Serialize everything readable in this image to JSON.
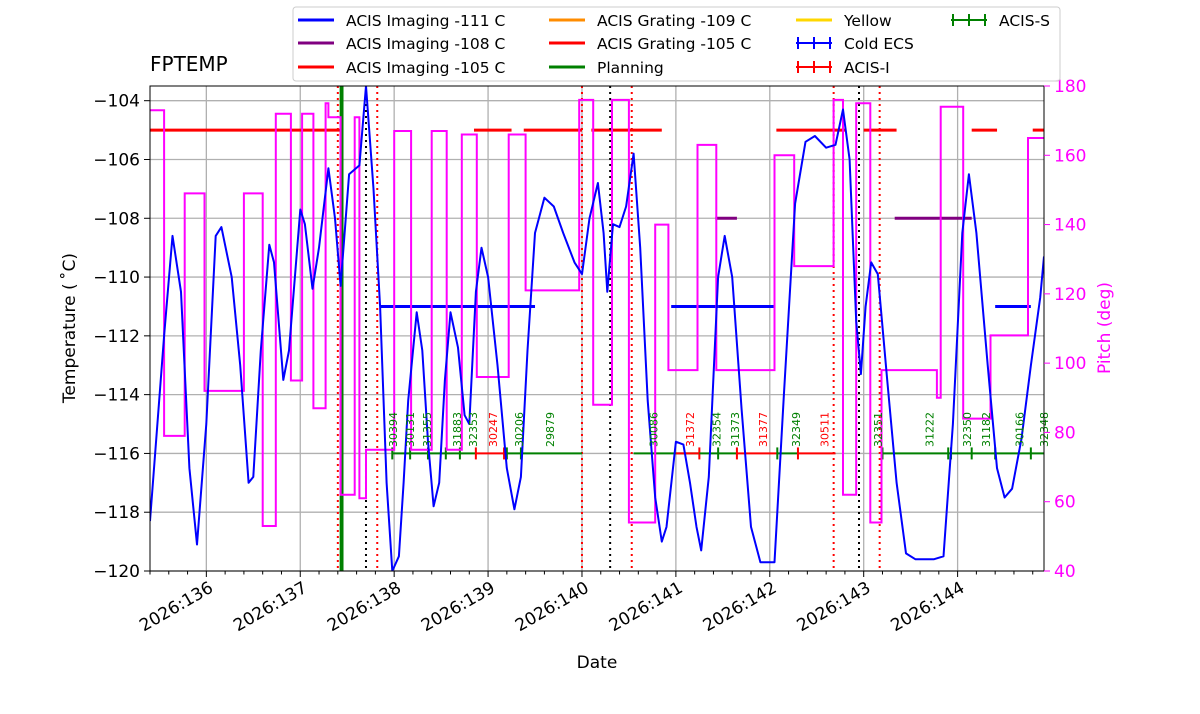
{
  "chart_data": {
    "type": "line",
    "title": "FPTEMP",
    "xlabel": "Date",
    "ylabel": "Temperature ($^\\circ$C)",
    "ylabel_display": "Temperature ( ˚C)",
    "y2label": "Pitch (deg)",
    "xlim": [
      135.4,
      144.92
    ],
    "ylim": [
      -120,
      -103.5
    ],
    "y2lim": [
      40,
      180
    ],
    "xticks": [
      136,
      137,
      138,
      139,
      140,
      141,
      142,
      143,
      144
    ],
    "xtick_labels": [
      "2026:136",
      "2026:137",
      "2026:138",
      "2026:139",
      "2026:140",
      "2026:141",
      "2026:142",
      "2026:143",
      "2026:144"
    ],
    "yticks": [
      -104,
      -106,
      -108,
      -110,
      -112,
      -114,
      -116,
      -118,
      -120
    ],
    "ytick_labels": [
      "−104",
      "−106",
      "−108",
      "−110",
      "−112",
      "−114",
      "−116",
      "−118",
      "−120"
    ],
    "y2ticks": [
      180,
      160,
      140,
      120,
      100,
      80,
      60,
      40
    ],
    "y2tick_labels": [
      "180",
      "160",
      "140",
      "120",
      "100",
      "80",
      "60",
      "40"
    ],
    "grid": true,
    "legend_position": "top",
    "legend": [
      {
        "label": "ACIS Imaging -111 C",
        "color": "#0000ff",
        "kind": "line"
      },
      {
        "label": "ACIS Imaging -108 C",
        "color": "#800080",
        "kind": "line"
      },
      {
        "label": "ACIS Imaging -105 C",
        "color": "#ff0000",
        "kind": "line"
      },
      {
        "label": "ACIS Grating -109 C",
        "color": "#ff8c00",
        "kind": "line"
      },
      {
        "label": "ACIS Grating -105 C",
        "color": "#ff0000",
        "kind": "line"
      },
      {
        "label": "Planning",
        "color": "#008000",
        "kind": "line"
      },
      {
        "label": "Yellow",
        "color": "#ffd700",
        "kind": "line"
      },
      {
        "label": "Cold ECS",
        "color": "#0000ff",
        "kind": "errorbar"
      },
      {
        "label": "ACIS-I",
        "color": "#ff0000",
        "kind": "errorbar"
      },
      {
        "label": "ACIS-S",
        "color": "#008000",
        "kind": "errorbar"
      }
    ],
    "fptemp": {
      "color": "#0000ff",
      "points": [
        [
          135.4,
          -118.3
        ],
        [
          135.55,
          -112.0
        ],
        [
          135.64,
          -108.6
        ],
        [
          135.73,
          -110.5
        ],
        [
          135.82,
          -116.5
        ],
        [
          135.9,
          -119.1
        ],
        [
          136.0,
          -115.0
        ],
        [
          136.1,
          -108.6
        ],
        [
          136.16,
          -108.3
        ],
        [
          136.27,
          -110.0
        ],
        [
          136.36,
          -113.0
        ],
        [
          136.45,
          -117.0
        ],
        [
          136.5,
          -116.8
        ],
        [
          136.58,
          -112.5
        ],
        [
          136.67,
          -108.9
        ],
        [
          136.72,
          -109.5
        ],
        [
          136.82,
          -113.5
        ],
        [
          136.88,
          -112.5
        ],
        [
          137.0,
          -107.7
        ],
        [
          137.05,
          -108.2
        ],
        [
          137.13,
          -110.4
        ],
        [
          137.2,
          -109.0
        ],
        [
          137.3,
          -106.3
        ],
        [
          137.37,
          -108.0
        ],
        [
          137.43,
          -110.3
        ],
        [
          137.52,
          -106.5
        ],
        [
          137.63,
          -106.2
        ],
        [
          137.7,
          -103.5
        ],
        [
          137.78,
          -107.0
        ],
        [
          137.85,
          -111.0
        ],
        [
          137.92,
          -117.0
        ],
        [
          137.98,
          -120.0
        ],
        [
          138.05,
          -119.5
        ],
        [
          138.1,
          -117.0
        ],
        [
          138.15,
          -114.2
        ],
        [
          138.24,
          -111.2
        ],
        [
          138.3,
          -112.5
        ],
        [
          138.36,
          -115.6
        ],
        [
          138.42,
          -117.8
        ],
        [
          138.48,
          -117.0
        ],
        [
          138.54,
          -113.5
        ],
        [
          138.6,
          -111.2
        ],
        [
          138.68,
          -112.4
        ],
        [
          138.75,
          -114.7
        ],
        [
          138.8,
          -115.0
        ],
        [
          138.87,
          -110.5
        ],
        [
          138.93,
          -109.0
        ],
        [
          139.0,
          -110.0
        ],
        [
          139.1,
          -113.0
        ],
        [
          139.2,
          -116.5
        ],
        [
          139.28,
          -117.9
        ],
        [
          139.35,
          -116.8
        ],
        [
          139.42,
          -112.5
        ],
        [
          139.5,
          -108.5
        ],
        [
          139.6,
          -107.3
        ],
        [
          139.7,
          -107.6
        ],
        [
          139.8,
          -108.5
        ],
        [
          139.92,
          -109.5
        ],
        [
          140.0,
          -109.9
        ],
        [
          140.08,
          -108.0
        ],
        [
          140.17,
          -106.8
        ],
        [
          140.23,
          -108.5
        ],
        [
          140.27,
          -110.5
        ],
        [
          140.33,
          -108.2
        ],
        [
          140.4,
          -108.3
        ],
        [
          140.47,
          -107.6
        ],
        [
          140.55,
          -105.8
        ],
        [
          140.62,
          -109.0
        ],
        [
          140.7,
          -114.2
        ],
        [
          140.78,
          -117.5
        ],
        [
          140.85,
          -119.0
        ],
        [
          140.9,
          -118.5
        ],
        [
          141.0,
          -115.6
        ],
        [
          141.08,
          -115.7
        ],
        [
          141.15,
          -117.0
        ],
        [
          141.22,
          -118.5
        ],
        [
          141.27,
          -119.3
        ],
        [
          141.35,
          -116.8
        ],
        [
          141.45,
          -110.0
        ],
        [
          141.52,
          -108.6
        ],
        [
          141.6,
          -110.0
        ],
        [
          141.7,
          -114.5
        ],
        [
          141.8,
          -118.5
        ],
        [
          141.9,
          -119.7
        ],
        [
          142.05,
          -119.7
        ],
        [
          142.15,
          -114.0
        ],
        [
          142.27,
          -107.5
        ],
        [
          142.38,
          -105.4
        ],
        [
          142.48,
          -105.2
        ],
        [
          142.6,
          -105.6
        ],
        [
          142.7,
          -105.5
        ],
        [
          142.78,
          -104.3
        ],
        [
          142.85,
          -106.0
        ],
        [
          142.92,
          -111.5
        ],
        [
          142.97,
          -113.3
        ],
        [
          143.02,
          -111.0
        ],
        [
          143.08,
          -109.5
        ],
        [
          143.15,
          -109.9
        ],
        [
          143.25,
          -113.5
        ],
        [
          143.35,
          -117.0
        ],
        [
          143.45,
          -119.4
        ],
        [
          143.55,
          -119.6
        ],
        [
          143.75,
          -119.6
        ],
        [
          143.85,
          -119.5
        ],
        [
          143.95,
          -115.0
        ],
        [
          144.05,
          -108.5
        ],
        [
          144.12,
          -106.5
        ],
        [
          144.2,
          -108.5
        ],
        [
          144.32,
          -113.0
        ],
        [
          144.42,
          -116.5
        ],
        [
          144.5,
          -117.5
        ],
        [
          144.58,
          -117.2
        ],
        [
          144.68,
          -115.5
        ],
        [
          144.78,
          -113.0
        ],
        [
          144.88,
          -110.7
        ],
        [
          144.92,
          -109.3
        ]
      ]
    },
    "pitch": {
      "color": "#ff00ff",
      "points": [
        [
          135.4,
          173
        ],
        [
          135.55,
          173
        ],
        [
          135.55,
          79
        ],
        [
          135.77,
          79
        ],
        [
          135.77,
          149
        ],
        [
          135.98,
          149
        ],
        [
          135.98,
          92
        ],
        [
          136.4,
          92
        ],
        [
          136.4,
          149
        ],
        [
          136.6,
          149
        ],
        [
          136.6,
          53
        ],
        [
          136.74,
          53
        ],
        [
          136.74,
          172
        ],
        [
          136.9,
          172
        ],
        [
          136.9,
          95
        ],
        [
          137.02,
          95
        ],
        [
          137.02,
          172
        ],
        [
          137.14,
          172
        ],
        [
          137.14,
          87
        ],
        [
          137.27,
          87
        ],
        [
          137.27,
          175
        ],
        [
          137.3,
          175
        ],
        [
          137.3,
          171
        ],
        [
          137.43,
          171
        ],
        [
          137.43,
          62
        ],
        [
          137.58,
          62
        ],
        [
          137.58,
          171
        ],
        [
          137.63,
          171
        ],
        [
          137.63,
          61
        ],
        [
          137.7,
          61
        ],
        [
          137.7,
          75
        ],
        [
          138.0,
          75
        ],
        [
          138.0,
          167
        ],
        [
          138.18,
          167
        ],
        [
          138.18,
          75
        ],
        [
          138.4,
          75
        ],
        [
          138.4,
          167
        ],
        [
          138.56,
          167
        ],
        [
          138.56,
          75
        ],
        [
          138.72,
          75
        ],
        [
          138.72,
          166
        ],
        [
          138.88,
          166
        ],
        [
          138.88,
          96
        ],
        [
          139.22,
          96
        ],
        [
          139.22,
          166
        ],
        [
          139.4,
          166
        ],
        [
          139.4,
          121
        ],
        [
          139.97,
          121
        ],
        [
          139.97,
          176
        ],
        [
          140.12,
          176
        ],
        [
          140.12,
          88
        ],
        [
          140.32,
          88
        ],
        [
          140.32,
          176
        ],
        [
          140.5,
          176
        ],
        [
          140.5,
          54
        ],
        [
          140.78,
          54
        ],
        [
          140.78,
          140
        ],
        [
          140.92,
          140
        ],
        [
          140.92,
          98
        ],
        [
          141.23,
          98
        ],
        [
          141.23,
          163
        ],
        [
          141.43,
          163
        ],
        [
          141.43,
          98
        ],
        [
          142.05,
          98
        ],
        [
          142.05,
          160
        ],
        [
          142.26,
          160
        ],
        [
          142.26,
          128
        ],
        [
          142.68,
          128
        ],
        [
          142.68,
          176
        ],
        [
          142.78,
          176
        ],
        [
          142.78,
          62
        ],
        [
          142.92,
          62
        ],
        [
          142.92,
          175
        ],
        [
          143.02,
          175
        ],
        [
          143.02,
          175
        ],
        [
          143.07,
          175
        ],
        [
          143.07,
          54
        ],
        [
          143.19,
          54
        ],
        [
          143.19,
          98
        ],
        [
          143.78,
          98
        ],
        [
          143.78,
          90
        ],
        [
          143.82,
          90
        ],
        [
          143.82,
          174
        ],
        [
          144.06,
          174
        ],
        [
          144.06,
          84
        ],
        [
          144.35,
          84
        ],
        [
          144.35,
          108
        ],
        [
          144.75,
          108
        ],
        [
          144.75,
          165
        ],
        [
          144.92,
          165
        ]
      ]
    },
    "limit_segments": [
      {
        "color": "#ff0000",
        "y": -105,
        "x": [
          135.4,
          137.45
        ]
      },
      {
        "color": "#ff0000",
        "y": -105,
        "x": [
          138.85,
          139.25
        ]
      },
      {
        "color": "#ff0000",
        "y": -105,
        "x": [
          139.38,
          140.0
        ]
      },
      {
        "color": "#ff0000",
        "y": -105,
        "x": [
          140.1,
          140.85
        ]
      },
      {
        "color": "#ff0000",
        "y": -105,
        "x": [
          142.07,
          142.8
        ]
      },
      {
        "color": "#ff0000",
        "y": -105,
        "x": [
          143.0,
          143.35
        ]
      },
      {
        "color": "#ff0000",
        "y": -105,
        "x": [
          144.15,
          144.42
        ]
      },
      {
        "color": "#ff0000",
        "y": -105,
        "x": [
          144.8,
          144.92
        ]
      },
      {
        "color": "#800080",
        "y": -108,
        "x": [
          141.42,
          141.65
        ]
      },
      {
        "color": "#800080",
        "y": -108,
        "x": [
          143.33,
          144.15
        ]
      },
      {
        "color": "#0000ff",
        "y": -111,
        "x": [
          137.85,
          139.5
        ]
      },
      {
        "color": "#0000ff",
        "y": -111,
        "x": [
          140.95,
          141.45
        ]
      },
      {
        "color": "#0000ff",
        "y": -111,
        "x": [
          141.45,
          142.05
        ]
      },
      {
        "color": "#0000ff",
        "y": -111,
        "x": [
          144.4,
          144.78
        ]
      }
    ],
    "planning_vlines": [
      137.43,
      137.45
    ],
    "red_dotted_vlines": [
      137.4,
      137.82,
      140.0,
      140.53,
      142.68,
      143.17
    ],
    "black_dotted_vlines": [
      137.7,
      140.3,
      142.95
    ],
    "obsids": [
      {
        "id": "30394",
        "x": 137.99,
        "color": "#008000"
      },
      {
        "id": "30131",
        "x": 138.17,
        "color": "#008000"
      },
      {
        "id": "31355",
        "x": 138.35,
        "color": "#008000"
      },
      {
        "id": "31883",
        "x": 138.67,
        "color": "#008000"
      },
      {
        "id": "32353",
        "x": 138.84,
        "color": "#008000"
      },
      {
        "id": "30247",
        "x": 139.05,
        "color": "#ff0000"
      },
      {
        "id": "30206",
        "x": 139.33,
        "color": "#008000"
      },
      {
        "id": "29879",
        "x": 139.66,
        "color": "#008000"
      },
      {
        "id": "30086",
        "x": 140.76,
        "color": "#008000"
      },
      {
        "id": "31372",
        "x": 141.15,
        "color": "#ff0000"
      },
      {
        "id": "32354",
        "x": 141.43,
        "color": "#008000"
      },
      {
        "id": "31373",
        "x": 141.63,
        "color": "#008000"
      },
      {
        "id": "31377",
        "x": 141.93,
        "color": "#ff0000"
      },
      {
        "id": "32349",
        "x": 142.28,
        "color": "#008000"
      },
      {
        "id": "30511",
        "x": 142.58,
        "color": "#ff0000"
      },
      {
        "id": "32351",
        "x": 143.15,
        "color": "#008000"
      },
      {
        "id": "31222",
        "x": 143.7,
        "color": "#008000"
      },
      {
        "id": "32350",
        "x": 144.1,
        "color": "#008000"
      },
      {
        "id": "31182",
        "x": 144.3,
        "color": "#008000"
      },
      {
        "id": "30166",
        "x": 144.66,
        "color": "#008000"
      },
      {
        "id": "32348",
        "x": 144.92,
        "color": "#008000"
      }
    ],
    "obsid_bars": [
      {
        "color": "#008000",
        "x": [
          137.98,
          138.87
        ],
        "ticks": [
          137.98,
          138.17,
          138.36,
          138.55,
          138.7
        ]
      },
      {
        "color": "#ff0000",
        "x": [
          138.87,
          139.2
        ],
        "ticks": [
          138.87,
          139.17
        ]
      },
      {
        "color": "#008000",
        "x": [
          139.2,
          140.0
        ],
        "ticks": [
          139.2,
          139.35
        ]
      },
      {
        "color": "#008000",
        "x": [
          140.55,
          141.25
        ],
        "ticks": []
      },
      {
        "color": "#ff0000",
        "x": [
          141.0,
          141.25
        ],
        "ticks": [
          141.25
        ]
      },
      {
        "color": "#008000",
        "x": [
          141.25,
          141.65
        ],
        "ticks": [
          141.45
        ]
      },
      {
        "color": "#ff0000",
        "x": [
          141.65,
          142.08
        ],
        "ticks": [
          141.65
        ]
      },
      {
        "color": "#008000",
        "x": [
          142.08,
          142.3
        ],
        "ticks": [
          142.08
        ]
      },
      {
        "color": "#ff0000",
        "x": [
          142.3,
          142.7
        ],
        "ticks": [
          142.3
        ]
      },
      {
        "color": "#008000",
        "x": [
          143.2,
          144.92
        ],
        "ticks": [
          143.2,
          143.9,
          143.93,
          144.15,
          144.4,
          144.78
        ]
      }
    ],
    "obsid_bar_y": -116
  }
}
